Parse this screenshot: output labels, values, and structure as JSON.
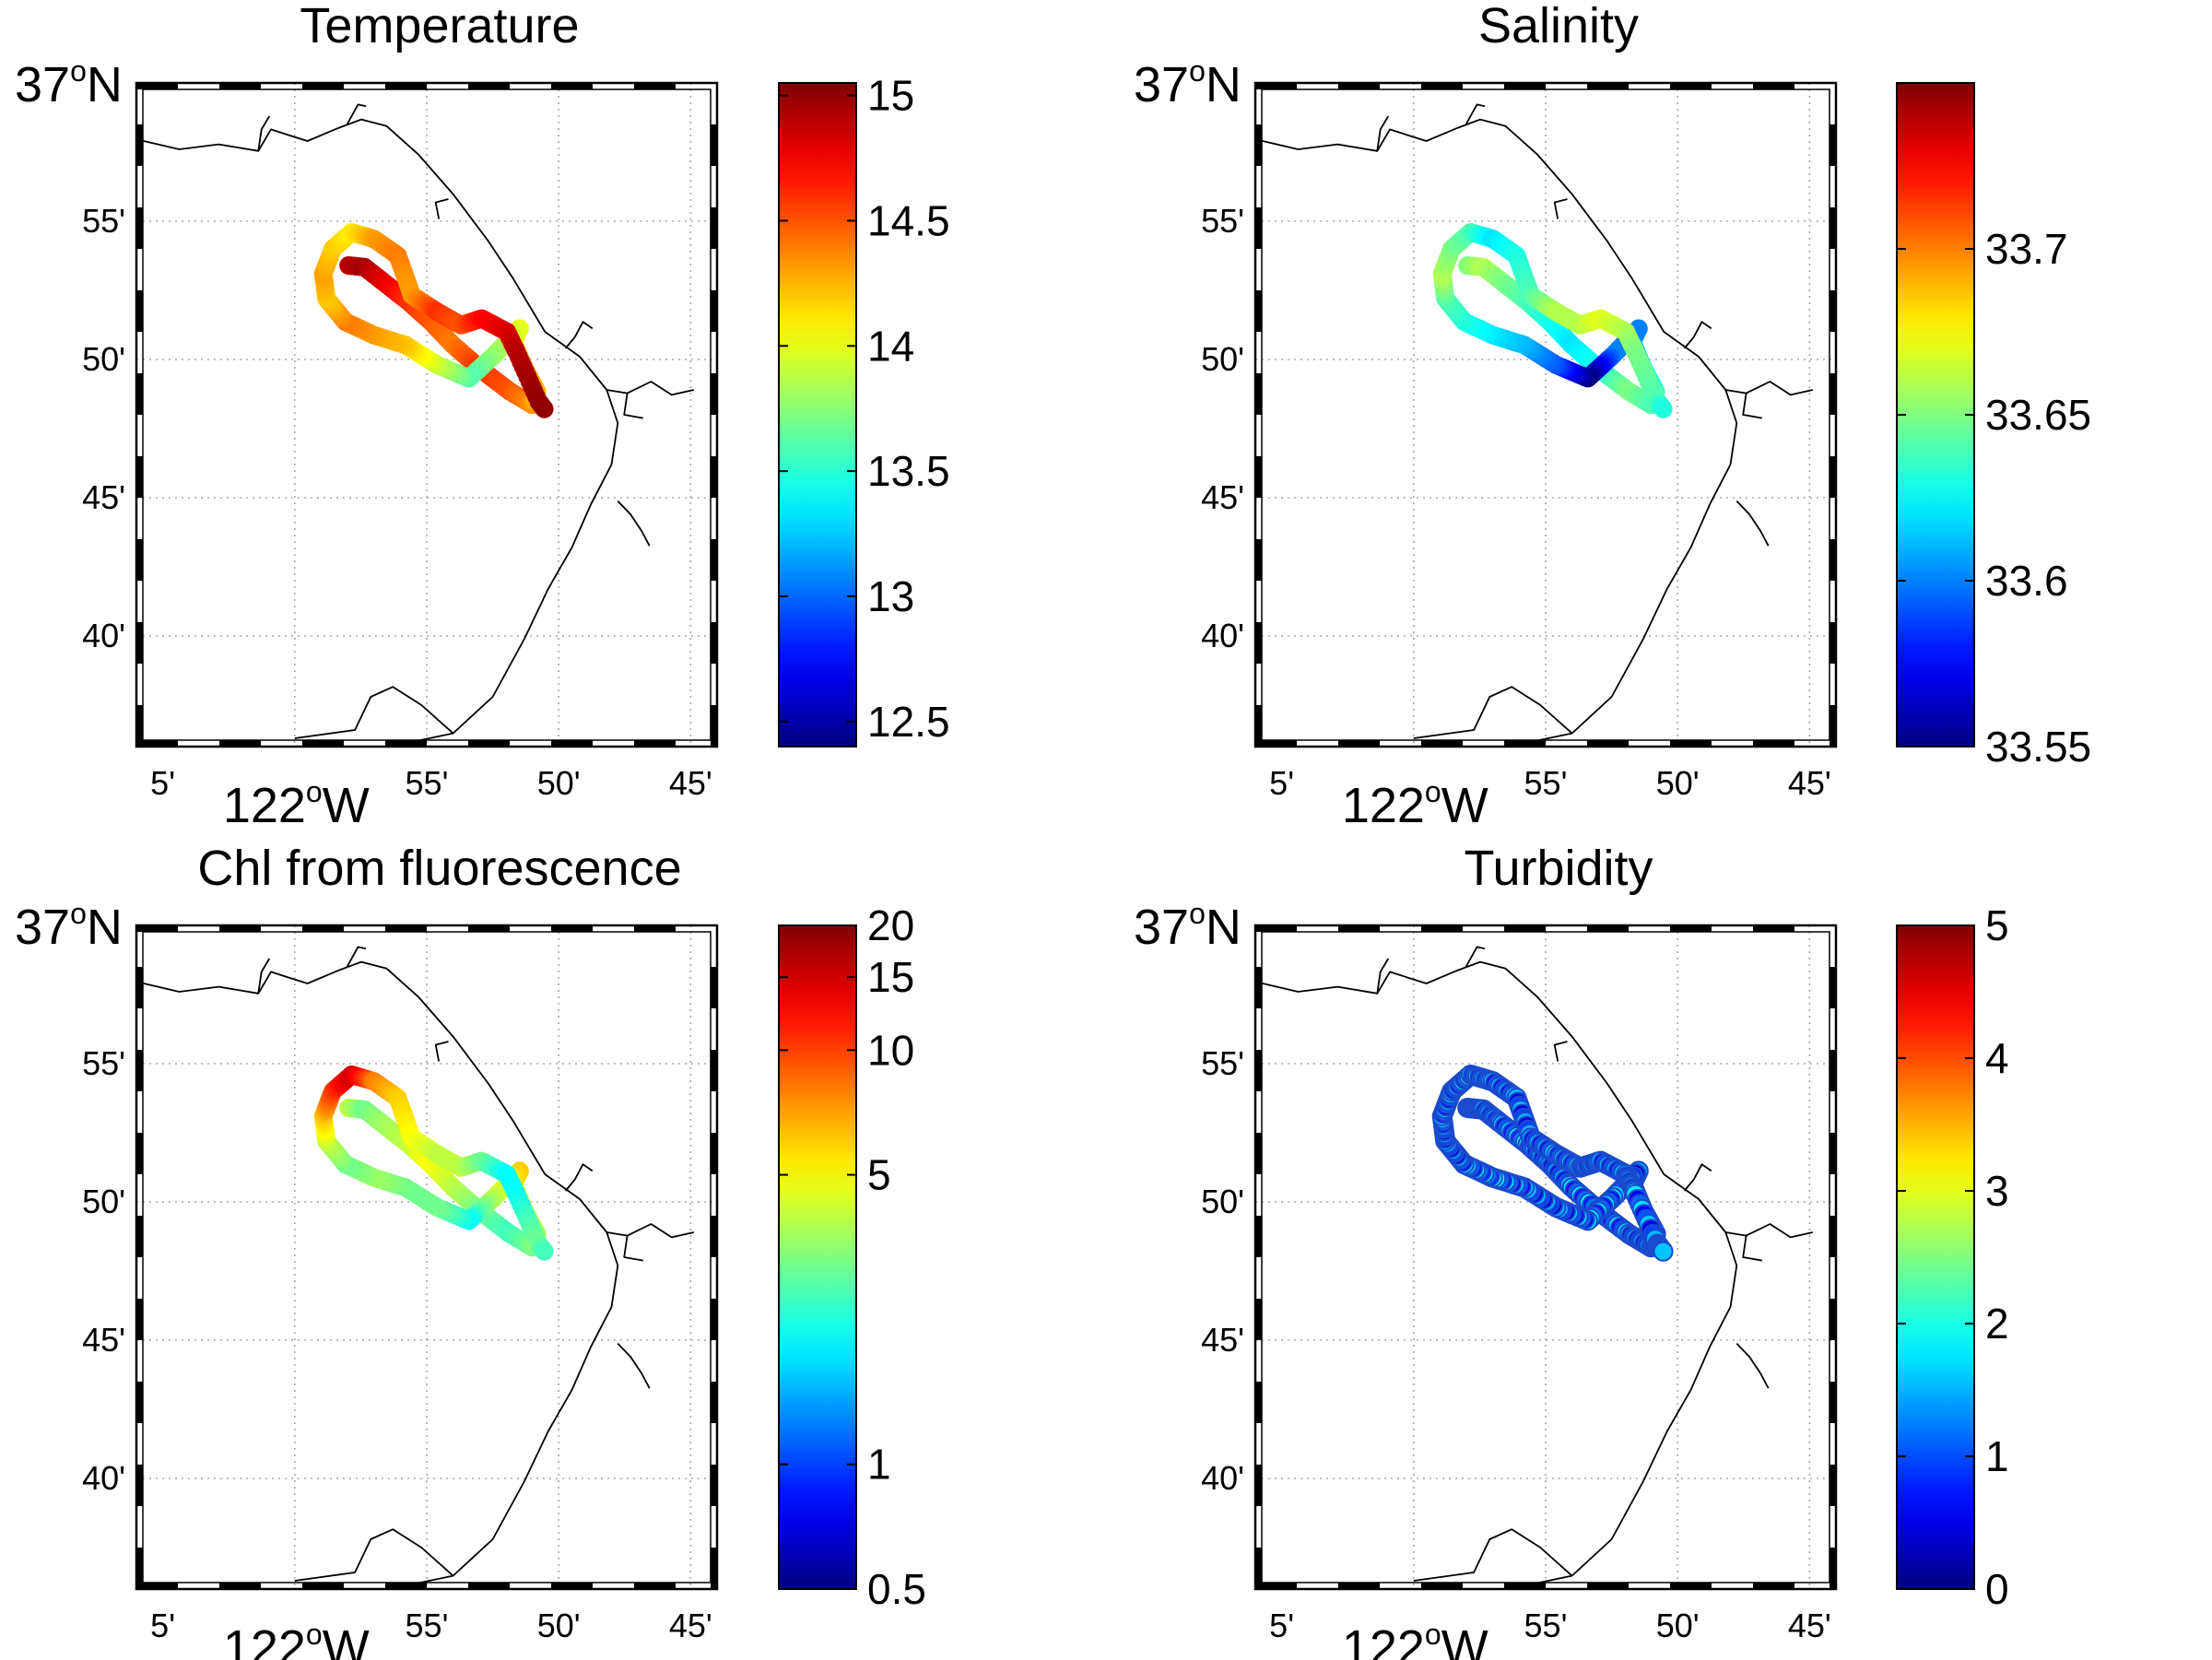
{
  "chart_data": [
    {
      "type": "scatter",
      "title": "Temperature",
      "colorbar": {
        "min": 12.4,
        "max": 15.05,
        "ticks": [
          12.5,
          13,
          13.5,
          14,
          14.5,
          15
        ],
        "labels": [
          "12.5",
          "13",
          "13.5",
          "14",
          "14.5",
          "15"
        ],
        "scale": "linear"
      },
      "track_values": [
        14.9,
        14.95,
        14.8,
        14.6,
        14.5,
        14.4,
        14.6,
        14.5,
        14.35,
        14.2,
        14.3,
        14.1,
        14.0,
        13.8,
        13.6,
        13.9,
        14.2,
        14.3,
        14.4,
        14.2,
        14.3,
        14.2,
        14.1,
        14.3,
        14.4,
        14.3,
        14.6,
        14.5,
        14.7,
        14.8,
        14.9,
        15.0,
        15.0
      ]
    },
    {
      "type": "scatter",
      "title": "Salinity",
      "colorbar": {
        "min": 33.55,
        "max": 33.75,
        "ticks": [
          33.55,
          33.6,
          33.65,
          33.7
        ],
        "labels": [
          "33.55",
          "33.6",
          "33.65",
          "33.7"
        ],
        "scale": "linear"
      },
      "track_values": [
        33.65,
        33.66,
        33.65,
        33.64,
        33.63,
        33.62,
        33.63,
        33.65,
        33.64,
        33.64,
        33.62,
        33.61,
        33.6,
        33.6,
        33.55,
        33.59,
        33.61,
        33.62,
        33.63,
        33.64,
        33.66,
        33.65,
        33.64,
        33.62,
        33.63,
        33.64,
        33.66,
        33.66,
        33.67,
        33.66,
        33.65,
        33.64,
        33.63
      ]
    },
    {
      "type": "scatter",
      "title": "Chl from fluorescence",
      "colorbar": {
        "min": 0.5,
        "max": 20,
        "ticks": [
          0.5,
          1,
          5,
          10,
          15,
          20
        ],
        "labels": [
          "0.5",
          "1",
          "5",
          "10",
          "15",
          "20"
        ],
        "scale": "log"
      },
      "track_values": [
        4,
        3,
        3.5,
        4,
        5,
        4,
        3,
        2.5,
        3,
        3.5,
        4,
        5,
        6,
        4,
        2,
        3,
        3,
        3.5,
        3,
        4,
        6,
        10,
        15,
        8,
        6,
        5,
        4,
        4,
        3,
        2,
        2,
        3,
        2.5
      ]
    },
    {
      "type": "scatter",
      "title": "Turbidity",
      "colorbar": {
        "min": 0,
        "max": 5,
        "ticks": [
          0,
          1,
          2,
          3,
          4,
          5
        ],
        "labels": [
          "0",
          "1",
          "2",
          "3",
          "4",
          "5"
        ],
        "scale": "linear"
      },
      "track_values": [
        0.7,
        1.0,
        0.8,
        1.2,
        0.6,
        0.9,
        1.1,
        0.8,
        0.7,
        0.9,
        1.0,
        0.8,
        0.6,
        0.9,
        1.0,
        0.7,
        0.8,
        1.1,
        0.9,
        0.7,
        1.0,
        0.8,
        1.2,
        0.9,
        0.8,
        0.7,
        1.0,
        0.9,
        0.8,
        0.9,
        1.0,
        0.7,
        0.8
      ]
    }
  ],
  "map": {
    "lat_label": "37",
    "lat_sup": "o",
    "lat_suffix": "N",
    "lat_minute_ticks": [
      "55'",
      "50'",
      "45'",
      "40'"
    ],
    "lon_label": "122",
    "lon_sup": "o",
    "lon_suffix": "W",
    "lon_minute_ticks": [
      "5'",
      "55'",
      "50'",
      "45'"
    ],
    "lat_range": [
      "36°36'N",
      "37°00'N"
    ],
    "lon_range": [
      "122°06'W",
      "121°44'W"
    ],
    "grid": true
  }
}
